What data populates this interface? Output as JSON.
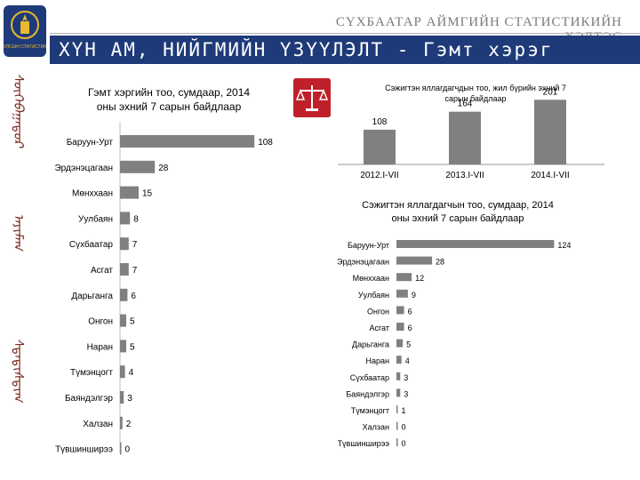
{
  "header": {
    "org_title": "СҮХБААТАР АЙМГИЙН СТАТИСТИКИЙН ХЭЛТЭС",
    "banner": "ХҮН АМ, НИЙГМИЙН ҮЗҮҮЛЭЛТ - Гэмт хэрэг",
    "logo_caption": "УЛСЫН СТАТИСТИК"
  },
  "colors": {
    "banner": "#1e3a78",
    "bar": "#808080",
    "scales": "#c0202a",
    "script": "#7a2b1b"
  },
  "side_decoration": {
    "script_columns": [
      "ᠰᠦᠬᠡᠪᠠᠭᠠᠲᠤᠷ",
      "ᠠᠶᠢᠮᠠᠭ",
      "ᠰᠲᠠᠲᠢᠰᠲᠢᠭ"
    ]
  },
  "chart_data": [
    {
      "type": "bar",
      "orientation": "horizontal",
      "title": "Гэмт хэргийн тоо, сумдаар, 2014 оны эхний 7 сарын байдлаар",
      "title_lines": [
        "Гэмт хэргийн тоо, сумдаар, 2014",
        "оны эхний 7 сарын байдлаар"
      ],
      "categories": [
        "Баруун-Урт",
        "Эрдэнэцагаан",
        "Мөнххаан",
        "Уулбаян",
        "Сүхбаатар",
        "Асгат",
        "Дарьганга",
        "Онгон",
        "Наран",
        "Түмэнцогт",
        "Баяндэлгэр",
        "Халзан",
        "Түвшинширээ"
      ],
      "values": [
        108,
        28,
        15,
        8,
        7,
        7,
        6,
        5,
        5,
        4,
        3,
        2,
        0
      ],
      "xlim": [
        0,
        120
      ]
    },
    {
      "type": "bar",
      "orientation": "vertical",
      "title": "Сэжигтэн яллагдагчдын тоо, жил бүрийн эхний 7 сарын байдлаар",
      "title_lines": [
        "Сэжигтэн яллагдагчдын тоо, жил бүрийн эхний 7",
        "сарын байдлаар"
      ],
      "categories": [
        "2012.I-VII",
        "2013.I-VII",
        "2014.I-VII"
      ],
      "values": [
        108,
        164,
        201
      ],
      "ylim": [
        0,
        210
      ]
    },
    {
      "type": "bar",
      "orientation": "horizontal",
      "title": "Сэжигтэн яллагдагчын тоо, сумдаар, 2014 оны эхний 7 сарын байдлаар",
      "title_lines": [
        "Сэжигтэн яллагдагчын тоо, сумдаар, 2014",
        "оны эхний 7 сарын байдлаар"
      ],
      "categories": [
        "Баруун-Урт",
        "Эрдэнэцагаан",
        "Мөнххаан",
        "Уулбаян",
        "Онгон",
        "Асгат",
        "Дарьганга",
        "Наран",
        "Сүхбаатар",
        "Баяндэлгэр",
        "Түмэнцогт",
        "Халзан",
        "Түвшинширээ"
      ],
      "values": [
        124,
        28,
        12,
        9,
        6,
        6,
        5,
        4,
        3,
        3,
        1,
        0,
        0
      ],
      "xlim": [
        0,
        130
      ]
    }
  ]
}
